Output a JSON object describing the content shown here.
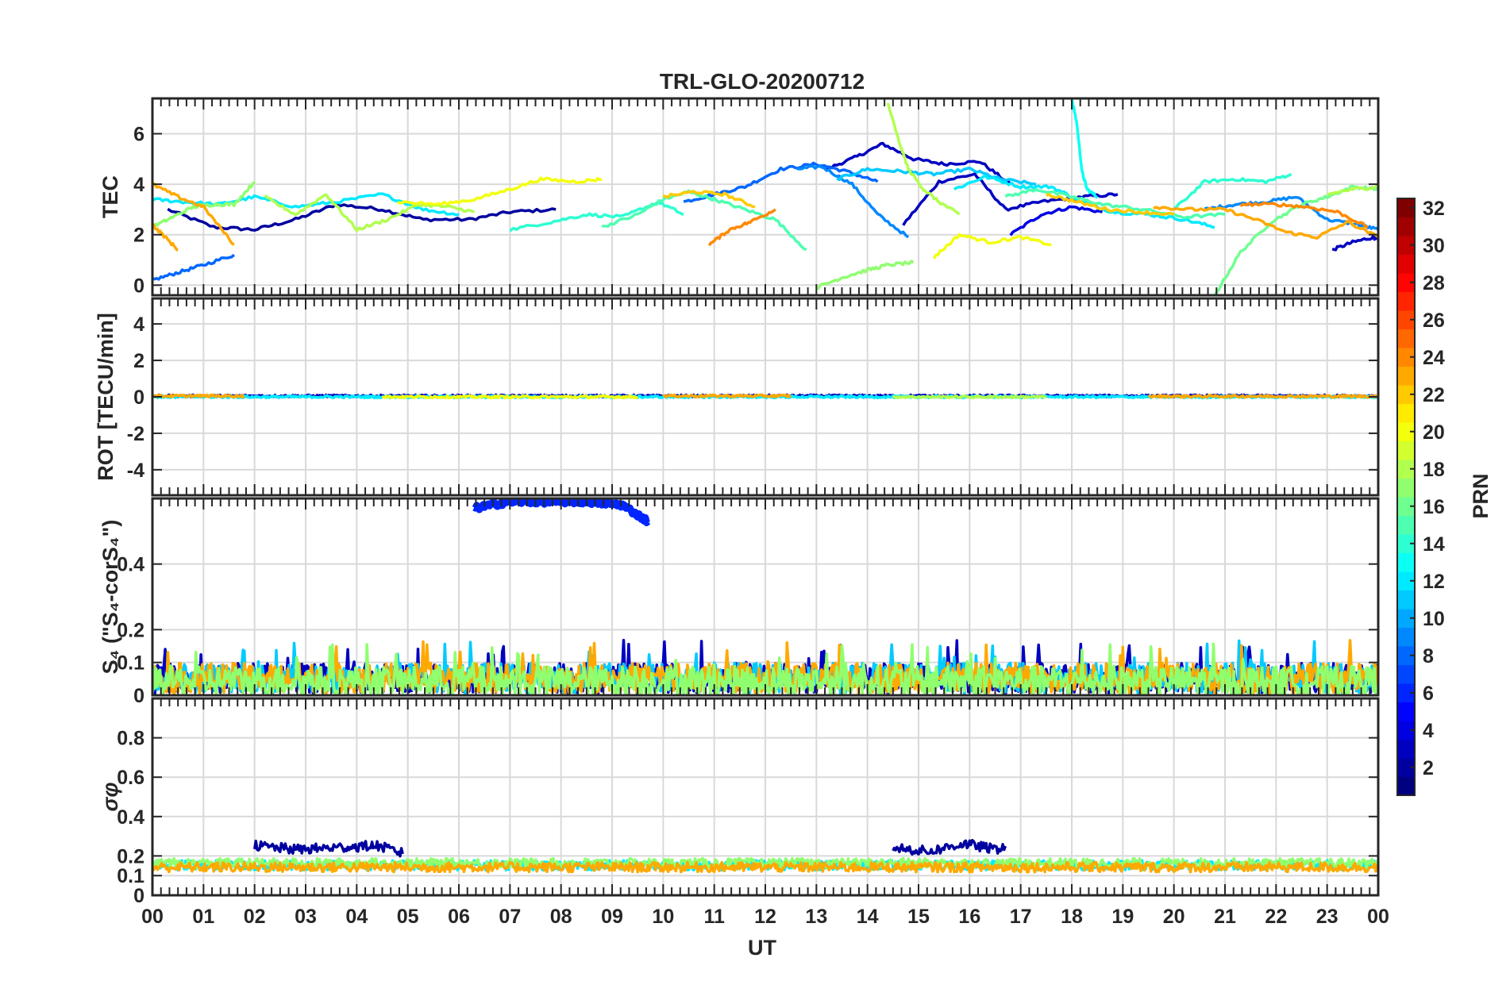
{
  "figure": {
    "title": "TRL-GLO-20200712",
    "xlabel": "UT",
    "colorbar_label": "PRN"
  },
  "chart_data": [
    {
      "type": "line",
      "panel": "tec",
      "ylabel": "TEC",
      "ylim": [
        -0.4,
        7.4
      ],
      "yticks": [
        0,
        2,
        4,
        6
      ],
      "series": [
        {
          "prn": 2,
          "x": [
            0.3,
            1.2,
            2.0,
            2.8,
            3.6,
            4.5,
            5.3,
            6.2,
            7.0,
            7.9
          ],
          "y": [
            3.0,
            2.3,
            2.2,
            2.6,
            3.2,
            3.0,
            2.6,
            2.6,
            2.9,
            3.0
          ]
        },
        {
          "prn": 3,
          "x": [
            13.2,
            13.8,
            14.3,
            14.9,
            15.5,
            16.2,
            16.8
          ],
          "y": [
            4.6,
            5.1,
            5.6,
            5.0,
            4.8,
            4.9,
            4.0
          ]
        },
        {
          "prn": 3,
          "x": [
            14.7,
            15.4,
            16.1,
            16.7,
            17.4,
            18.2,
            18.9
          ],
          "y": [
            2.4,
            4.1,
            4.4,
            3.0,
            3.3,
            3.5,
            3.6
          ]
        },
        {
          "prn": 4,
          "x": [
            16.8,
            17.4,
            18.0,
            18.6
          ],
          "y": [
            2.0,
            2.8,
            3.1,
            2.9
          ]
        },
        {
          "prn": 3,
          "x": [
            23.1,
            23.5,
            23.9,
            24.0
          ],
          "y": [
            1.4,
            1.7,
            1.9,
            1.8
          ]
        },
        {
          "prn": 8,
          "x": [
            0.0,
            0.5,
            1.0,
            1.6
          ],
          "y": [
            0.2,
            0.5,
            0.8,
            1.2
          ]
        },
        {
          "prn": 8,
          "x": [
            10.4,
            11.0,
            11.6,
            12.3,
            13.0,
            13.6,
            14.2
          ],
          "y": [
            3.3,
            3.6,
            3.9,
            4.6,
            4.8,
            4.5,
            4.1
          ]
        },
        {
          "prn": 9,
          "x": [
            12.6,
            13.1,
            13.7,
            14.2,
            14.8
          ],
          "y": [
            4.6,
            4.7,
            4.0,
            2.8,
            1.9
          ]
        },
        {
          "prn": 9,
          "x": [
            20.6,
            21.2,
            21.8,
            22.4,
            23.0,
            23.6,
            24.0
          ],
          "y": [
            3.0,
            3.2,
            3.3,
            3.5,
            2.6,
            2.4,
            2.2
          ]
        },
        {
          "prn": 11,
          "x": [
            13.4,
            14.0,
            14.7,
            15.3,
            16.0,
            16.6,
            17.3
          ],
          "y": [
            4.2,
            4.6,
            4.5,
            4.4,
            4.6,
            4.2,
            4.0
          ]
        },
        {
          "prn": 12,
          "x": [
            0.0,
            0.6,
            1.3,
            2.0,
            2.8,
            3.6,
            4.5,
            5.3,
            6.0
          ],
          "y": [
            3.4,
            3.3,
            3.2,
            3.5,
            3.1,
            3.3,
            3.6,
            3.0,
            2.8
          ]
        },
        {
          "prn": 12,
          "x": [
            15.7,
            16.3,
            17.0,
            17.6,
            18.2,
            18.8,
            19.5,
            20.2,
            20.8
          ],
          "y": [
            3.8,
            4.3,
            3.9,
            3.9,
            3.3,
            2.9,
            2.8,
            2.6,
            2.3
          ]
        },
        {
          "prn": 13,
          "x": [
            18.0,
            18.1,
            18.2,
            18.3,
            18.5
          ],
          "y": [
            7.4,
            6.4,
            4.5,
            3.8,
            3.5
          ]
        },
        {
          "prn": 14,
          "x": [
            7.0,
            7.8,
            8.5,
            9.2,
            9.9,
            10.4
          ],
          "y": [
            2.2,
            2.5,
            2.8,
            2.7,
            3.3,
            2.8
          ]
        },
        {
          "prn": 14,
          "x": [
            20.0,
            20.6,
            21.2,
            21.8,
            22.3
          ],
          "y": [
            3.0,
            4.1,
            4.2,
            4.1,
            4.4
          ]
        },
        {
          "prn": 15,
          "x": [
            8.8,
            9.5,
            10.0,
            10.5,
            11.0,
            11.6,
            12.2,
            12.8
          ],
          "y": [
            2.3,
            2.8,
            3.4,
            3.7,
            3.4,
            3.0,
            2.6,
            1.4
          ]
        },
        {
          "prn": 15,
          "x": [
            16.7,
            17.3,
            18.0,
            18.6,
            19.4,
            20.2,
            21.0
          ],
          "y": [
            3.5,
            3.8,
            3.5,
            3.2,
            3.0,
            2.7,
            2.8
          ]
        },
        {
          "prn": 16,
          "x": [
            20.8,
            21.3,
            21.9,
            22.5,
            23.0,
            23.5,
            24.0
          ],
          "y": [
            -0.4,
            1.3,
            2.5,
            3.2,
            3.5,
            3.9,
            3.8
          ]
        },
        {
          "prn": 17,
          "x": [
            0.0,
            0.4,
            0.8,
            1.2,
            1.6,
            2.0
          ],
          "y": [
            2.3,
            2.7,
            3.1,
            3.2,
            3.2,
            4.1
          ]
        },
        {
          "prn": 17,
          "x": [
            13.0,
            13.5,
            14.0,
            14.4,
            14.9
          ],
          "y": [
            -0.1,
            0.3,
            0.6,
            0.8,
            0.9
          ]
        },
        {
          "prn": 18,
          "x": [
            2.2,
            2.8,
            3.4,
            4.0,
            4.6,
            5.2,
            5.8,
            6.3
          ],
          "y": [
            3.5,
            2.8,
            3.6,
            2.2,
            2.6,
            3.2,
            3.1,
            2.9
          ]
        },
        {
          "prn": 18,
          "x": [
            14.4,
            14.6,
            14.8,
            15.1,
            15.4,
            15.8
          ],
          "y": [
            7.2,
            5.8,
            4.6,
            3.8,
            3.3,
            2.8
          ]
        },
        {
          "prn": 18,
          "x": [
            23.0,
            23.5,
            24.0
          ],
          "y": [
            3.6,
            3.8,
            3.9
          ]
        },
        {
          "prn": 20,
          "x": [
            4.8,
            5.6,
            6.3,
            7.0,
            7.6,
            8.3,
            8.8
          ],
          "y": [
            3.3,
            3.2,
            3.4,
            3.8,
            4.2,
            4.1,
            4.2
          ]
        },
        {
          "prn": 20,
          "x": [
            15.3,
            15.8,
            16.4,
            17.0,
            17.6
          ],
          "y": [
            1.1,
            2.0,
            1.7,
            1.9,
            1.6
          ]
        },
        {
          "prn": 22,
          "x": [
            10.0,
            10.6,
            11.2,
            11.8
          ],
          "y": [
            3.5,
            3.7,
            3.6,
            3.1
          ]
        },
        {
          "prn": 22,
          "x": [
            17.5,
            18.1,
            18.7,
            19.3,
            20.0
          ],
          "y": [
            3.6,
            3.3,
            3.0,
            2.9,
            2.8
          ]
        },
        {
          "prn": 23,
          "x": [
            0.0,
            0.5,
            1.0,
            1.6
          ],
          "y": [
            4.0,
            3.5,
            3.1,
            1.6
          ]
        },
        {
          "prn": 23,
          "x": [
            0.0,
            0.2,
            0.5
          ],
          "y": [
            2.4,
            2.0,
            1.4
          ]
        },
        {
          "prn": 24,
          "x": [
            10.9,
            11.3,
            11.7,
            12.2
          ],
          "y": [
            1.6,
            2.2,
            2.5,
            3.0
          ]
        },
        {
          "prn": 23,
          "x": [
            19.6,
            20.3,
            21.0,
            21.6,
            22.2,
            22.8,
            23.4,
            24.0
          ],
          "y": [
            3.1,
            3.0,
            3.0,
            2.6,
            2.1,
            1.9,
            2.5,
            1.9
          ]
        },
        {
          "prn": 24,
          "x": [
            21.3,
            22.0,
            22.6,
            23.2,
            23.8
          ],
          "y": [
            3.2,
            3.2,
            3.1,
            2.9,
            2.3
          ]
        }
      ]
    },
    {
      "type": "line",
      "panel": "rot",
      "ylabel": "ROT [TECU/min]",
      "ylim": [
        -5.4,
        5.4
      ],
      "yticks": [
        -4,
        -2,
        0,
        2,
        4
      ],
      "series": [
        {
          "prn": 3,
          "x": [
            0,
            24
          ],
          "y": [
            0.05,
            0.05
          ]
        },
        {
          "prn": 12,
          "x": [
            0,
            24
          ],
          "y": [
            0.0,
            0.0
          ]
        },
        {
          "prn": 20,
          "x": [
            4.5,
            9.5
          ],
          "y": [
            0.0,
            0.0
          ]
        },
        {
          "prn": 23,
          "x": [
            0,
            1.8
          ],
          "y": [
            0.05,
            0.05
          ]
        },
        {
          "prn": 23,
          "x": [
            10,
            12.5
          ],
          "y": [
            0.05,
            0.05
          ]
        },
        {
          "prn": 23,
          "x": [
            19.5,
            24
          ],
          "y": [
            0.03,
            0.03
          ]
        },
        {
          "prn": 18,
          "x": [
            14.5,
            17.5
          ],
          "y": [
            0.0,
            0.0
          ]
        }
      ]
    },
    {
      "type": "line",
      "panel": "s4",
      "ylabel": "S₄ (\"S₄-corS₄\")",
      "ylim": [
        0,
        0.6
      ],
      "yticks": [
        0,
        0.1,
        0.2,
        0.4
      ],
      "series": [
        {
          "prn": 6,
          "x": [
            6.3,
            7.0,
            7.8,
            8.5,
            9.2,
            9.7
          ],
          "y": [
            0.57,
            0.59,
            0.59,
            0.59,
            0.58,
            0.53
          ]
        },
        {
          "prn": 3,
          "x": [
            0,
            24
          ],
          "y": [
            0.04,
            0.04
          ]
        },
        {
          "prn": 11,
          "x": [
            0,
            24
          ],
          "y": [
            0.04,
            0.04
          ]
        },
        {
          "prn": 23,
          "x": [
            0,
            24
          ],
          "y": [
            0.04,
            0.04
          ]
        },
        {
          "prn": 17,
          "x": [
            0,
            24
          ],
          "y": [
            0.03,
            0.03
          ]
        }
      ]
    },
    {
      "type": "line",
      "panel": "sigma",
      "ylabel": "σφ",
      "ylim": [
        0,
        1.0
      ],
      "yticks": [
        0,
        0.1,
        0.2,
        0.4,
        0.6,
        0.8
      ],
      "series": [
        {
          "prn": 2,
          "x": [
            2.0,
            2.8,
            3.6,
            4.4,
            4.9
          ],
          "y": [
            0.25,
            0.23,
            0.24,
            0.25,
            0.21
          ]
        },
        {
          "prn": 2,
          "x": [
            14.5,
            15.2,
            15.9,
            16.5,
            16.7
          ],
          "y": [
            0.24,
            0.22,
            0.26,
            0.23,
            0.25
          ]
        },
        {
          "prn": 12,
          "x": [
            0,
            24
          ],
          "y": [
            0.15,
            0.15
          ]
        },
        {
          "prn": 17,
          "x": [
            0,
            24
          ],
          "y": [
            0.16,
            0.16
          ]
        },
        {
          "prn": 23,
          "x": [
            0,
            24
          ],
          "y": [
            0.14,
            0.14
          ]
        }
      ]
    }
  ],
  "xaxis": {
    "xlim": [
      0,
      24
    ],
    "tick_labels": [
      "00",
      "01",
      "02",
      "03",
      "04",
      "05",
      "06",
      "07",
      "08",
      "09",
      "10",
      "11",
      "12",
      "13",
      "14",
      "15",
      "16",
      "17",
      "18",
      "19",
      "20",
      "21",
      "22",
      "23",
      "00"
    ]
  },
  "colorbar": {
    "range": [
      1,
      32
    ],
    "ticks": [
      2,
      4,
      6,
      8,
      10,
      12,
      14,
      16,
      18,
      20,
      22,
      24,
      26,
      28,
      30,
      32
    ],
    "colormap": "jet"
  },
  "colors": {
    "axis": "#262626",
    "grid": "#d9d9d9"
  }
}
